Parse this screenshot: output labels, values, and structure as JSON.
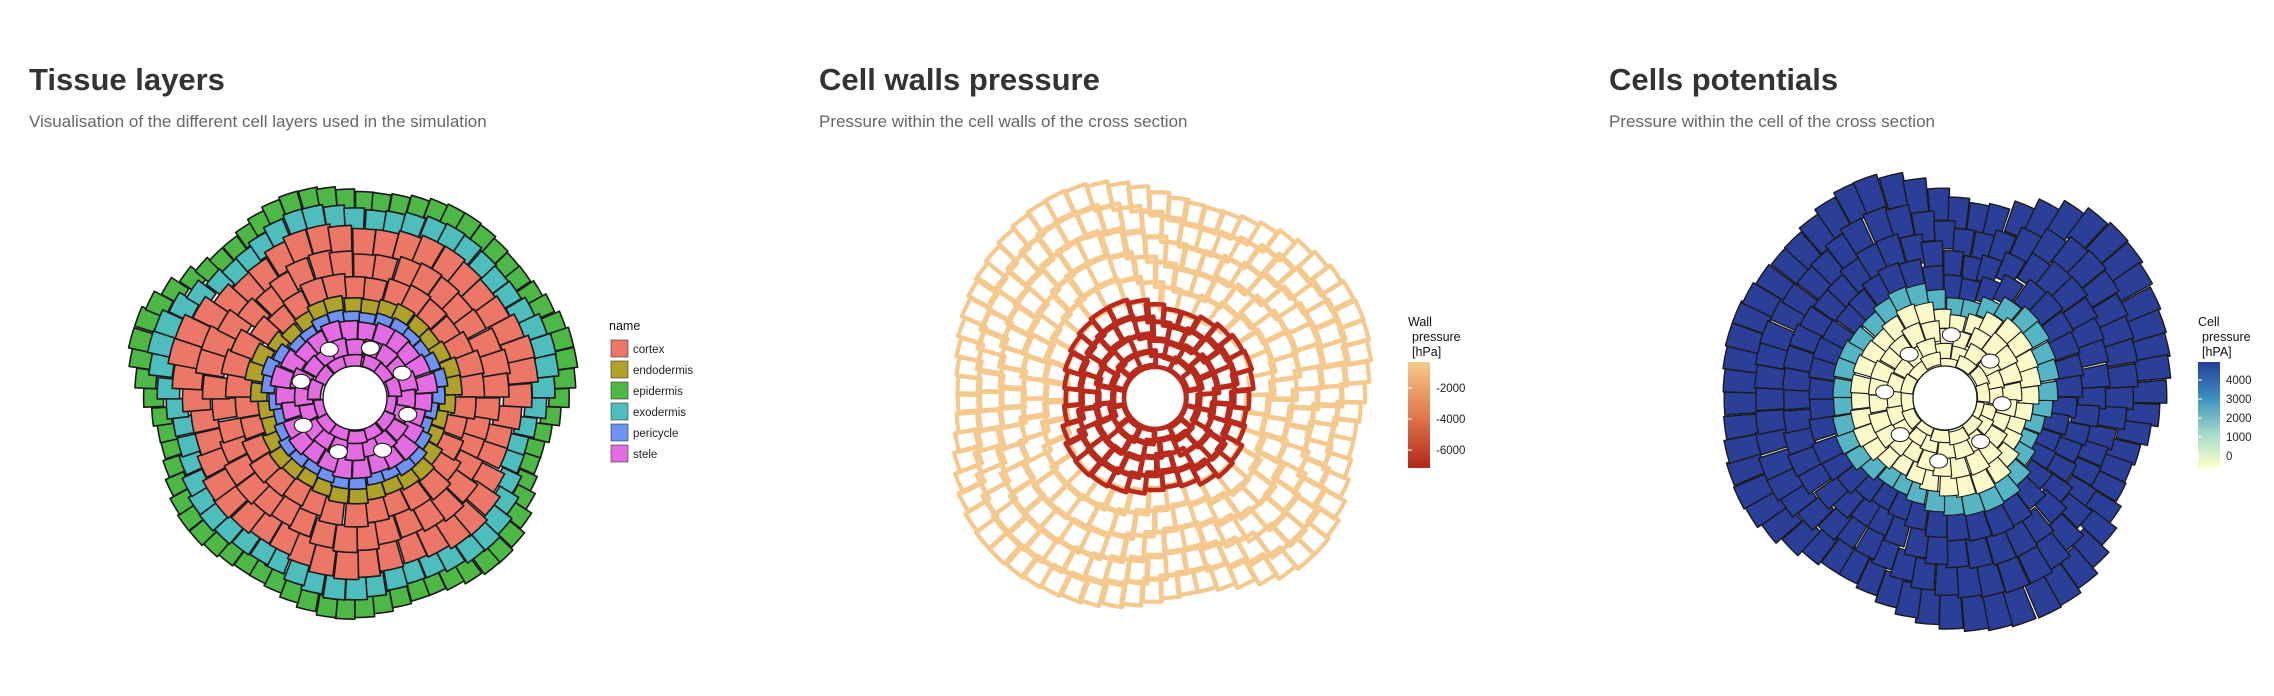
{
  "panels": [
    {
      "title": "Tissue layers",
      "subtitle": "Visualisation of the different cell layers used in the simulation",
      "legend": {
        "title": "name",
        "items": [
          {
            "label": "cortex",
            "color": "#EC7767"
          },
          {
            "label": "endodermis",
            "color": "#B0A12A"
          },
          {
            "label": "epidermis",
            "color": "#4DB846"
          },
          {
            "label": "exodermis",
            "color": "#4DBDBD"
          },
          {
            "label": "pericycle",
            "color": "#6E93F5"
          },
          {
            "label": "stele",
            "color": "#E36CE3"
          }
        ]
      }
    },
    {
      "title": "Cell walls pressure",
      "subtitle": "Pressure within the cell walls of the cross section",
      "legend": {
        "title_lines": [
          "Wall",
          "pressure",
          "[hPa]"
        ],
        "ticks": [
          "-2000",
          "-4000",
          "-6000"
        ],
        "gradient": [
          "#F7CA8C",
          "#E07A4E",
          "#B2281A"
        ]
      }
    },
    {
      "title": "Cells potentials",
      "subtitle": "Pressure within the cell of the cross section",
      "legend": {
        "title_lines": [
          "Cell",
          "pressure",
          "[hPA]"
        ],
        "ticks": [
          "4000",
          "3000",
          "2000",
          "1000",
          "0"
        ],
        "gradient": [
          "#24409A",
          "#3C8DBC",
          "#9FD8C8",
          "#FFFFCC"
        ]
      }
    }
  ],
  "colors": {
    "wall_outer": "#F5C98E",
    "wall_inner": "#B82A1C",
    "cell_outer": "#2B3F98",
    "cell_ring": "#55B5C4",
    "cell_inner": "#FBFAC8",
    "outline": "#1a1a1a"
  }
}
